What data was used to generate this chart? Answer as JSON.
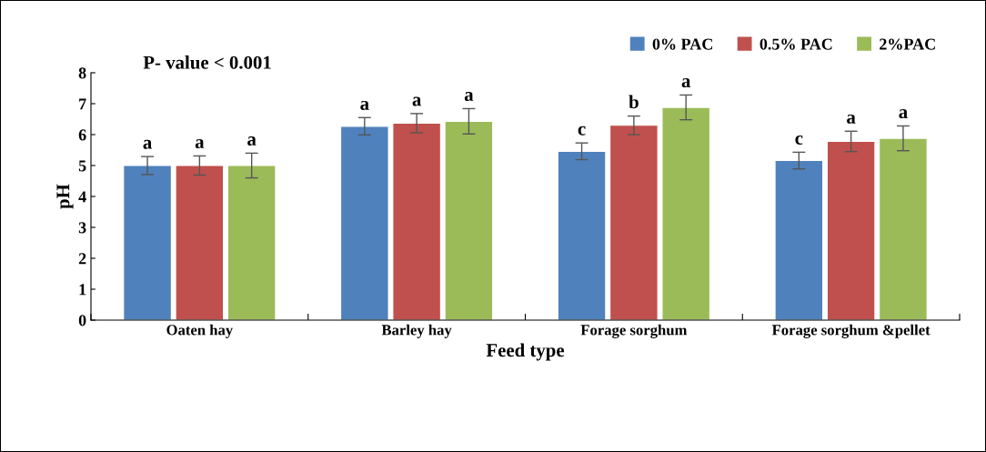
{
  "chart_data": {
    "type": "bar",
    "xlabel": "Feed type",
    "ylabel": "pH",
    "categories": [
      "Oaten hay",
      "Barley hay",
      "Forage sorghum",
      "Forage sorghum &pellet"
    ],
    "series": [
      {
        "name": "0% PAC",
        "color": "#4f81bd",
        "values": [
          5.0,
          6.27,
          5.46,
          5.16
        ],
        "errors": [
          0.29,
          0.28,
          0.27,
          0.27
        ],
        "value_labels": [
          "a",
          "a",
          "c",
          "c"
        ]
      },
      {
        "name": "0.5% PAC",
        "color": "#c0504d",
        "values": [
          5.0,
          6.37,
          6.3,
          5.78
        ],
        "errors": [
          0.31,
          0.31,
          0.3,
          0.33
        ],
        "value_labels": [
          "a",
          "a",
          "b",
          "a"
        ]
      },
      {
        "name": "2%PAC",
        "color": "#9bbb59",
        "values": [
          5.0,
          6.43,
          6.88,
          5.88
        ],
        "errors": [
          0.4,
          0.41,
          0.4,
          0.4
        ],
        "value_labels": [
          "a",
          "a",
          "a",
          "a"
        ]
      }
    ],
    "annotations": [
      "P- value < 0.001"
    ],
    "ylim": [
      0,
      8
    ],
    "yticks": [
      0,
      1,
      2,
      3,
      4,
      5,
      6,
      7,
      8
    ],
    "grid": false,
    "legend": "top right"
  }
}
